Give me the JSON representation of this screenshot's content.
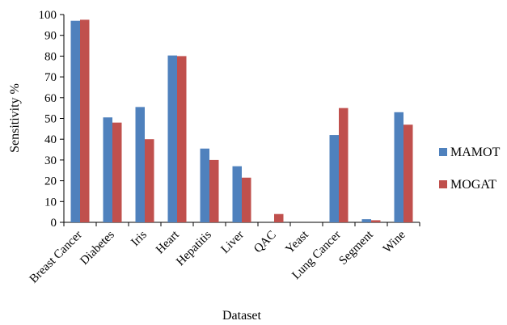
{
  "chart_data": {
    "type": "bar",
    "title": "",
    "xlabel": "Dataset",
    "ylabel": "Sensitivity  %",
    "ylim": [
      0,
      100
    ],
    "yticks": [
      0,
      10,
      20,
      30,
      40,
      50,
      60,
      70,
      80,
      90,
      100
    ],
    "grid": false,
    "legend_position": "right",
    "categories": [
      "Breast Cancer",
      "Diabetes",
      "Iris",
      "Heart",
      "Hepatitis",
      "Liver",
      "QAC",
      "Yeast",
      "Lung Cancer",
      "Segment",
      "Wine"
    ],
    "series": [
      {
        "name": "MAMOT",
        "color": "#4f81bd",
        "values": [
          97,
          50.5,
          55.5,
          80.3,
          35.5,
          27,
          0,
          0,
          42,
          1.5,
          53
        ]
      },
      {
        "name": "MOGAT",
        "color": "#c0504d",
        "values": [
          97.5,
          48,
          40,
          80,
          30,
          21.5,
          4,
          0,
          55,
          1,
          47
        ]
      }
    ]
  }
}
